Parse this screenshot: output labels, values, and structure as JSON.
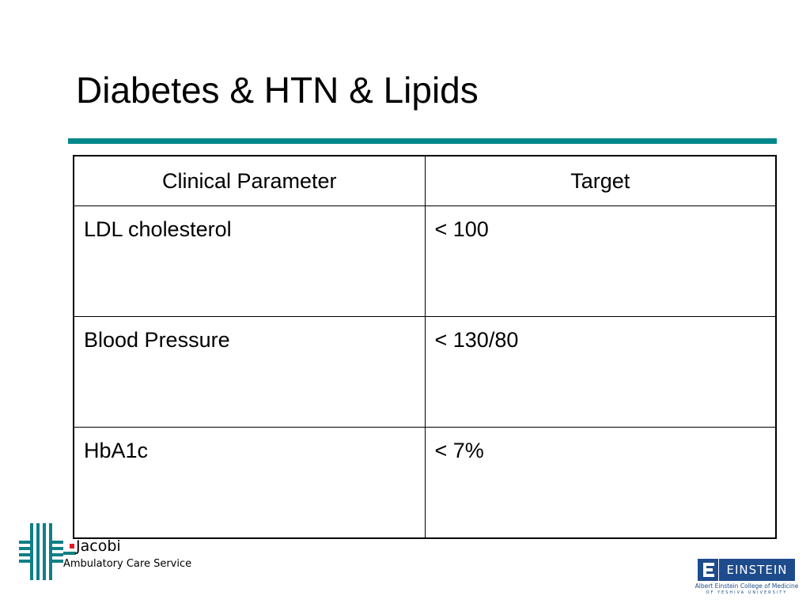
{
  "slide": {
    "title": "Diabetes & HTN & Lipids",
    "accent_color": "#00878a"
  },
  "table": {
    "headers": [
      "Clinical Parameter",
      "Target"
    ],
    "rows": [
      [
        "LDL cholesterol",
        "< 100"
      ],
      [
        "Blood Pressure",
        "< 130/80"
      ],
      [
        "HbA1c",
        "< 7%"
      ]
    ]
  },
  "logos": {
    "jacobi": {
      "name": "Jacobi",
      "subtitle": "Ambulatory Care Service",
      "icon": "jacobi-cross-logo",
      "color": "#0f7f86",
      "accent": "#e31b23"
    },
    "einstein": {
      "name": "EINSTEIN",
      "line1": "Albert Einstein College of Medicine",
      "line2": "OF YESHIVA UNIVERSITY",
      "icon": "einstein-e-logo",
      "color": "#1e4b8c"
    }
  }
}
